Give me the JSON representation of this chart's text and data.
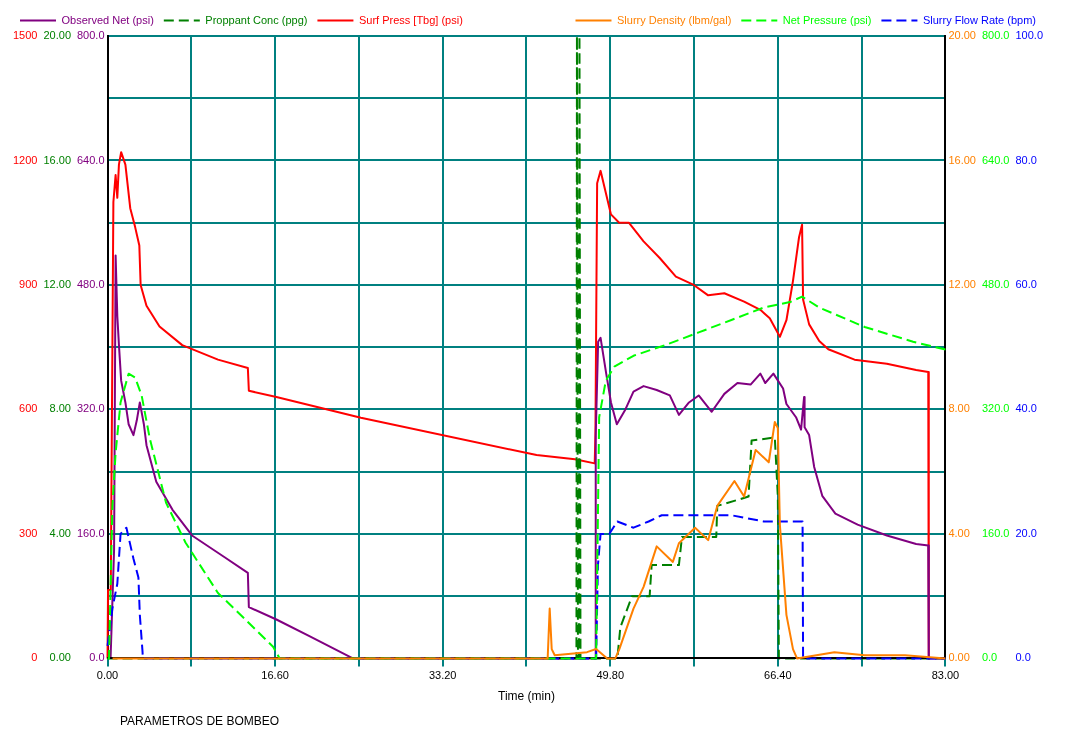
{
  "chart_data": [
    {
      "type": "line",
      "xlabel": "Time (min)",
      "annotations": [
        "PARAMETROS DE BOMBEO"
      ],
      "xlim": [
        0,
        83
      ],
      "xticks": [
        {
          "value": 0,
          "label": "0.00"
        },
        {
          "value": 8.3,
          "label": null
        },
        {
          "value": 16.6,
          "label": "16.60"
        },
        {
          "value": 24.9,
          "label": null
        },
        {
          "value": 33.2,
          "label": "33.20"
        },
        {
          "value": 41.5,
          "label": null
        },
        {
          "value": 49.8,
          "label": "49.80"
        },
        {
          "value": 58.1,
          "label": null
        },
        {
          "value": 66.4,
          "label": "66.40"
        },
        {
          "value": 74.7,
          "label": null
        },
        {
          "value": 83,
          "label": "83.00"
        }
      ],
      "ylim": [
        0,
        800
      ],
      "yticks": [
        {
          "value": 0,
          "label": "0.0"
        },
        {
          "value": 80,
          "label": null
        },
        {
          "value": 160,
          "label": "160.0"
        },
        {
          "value": 240,
          "label": null
        },
        {
          "value": 320,
          "label": "320.0"
        },
        {
          "value": 400,
          "label": null
        },
        {
          "value": 480,
          "label": "480.0"
        },
        {
          "value": 560,
          "label": null
        },
        {
          "value": 640,
          "label": "640.0"
        },
        {
          "value": 720,
          "label": null
        },
        {
          "value": 800,
          "label": "800.0"
        }
      ],
      "y2lim": [
        0,
        20
      ],
      "y2ticks": [
        {
          "value": 0,
          "label": "0.00"
        },
        {
          "value": 4,
          "label": "4.00"
        },
        {
          "value": 8,
          "label": "8.00"
        },
        {
          "value": 12,
          "label": "12.00"
        },
        {
          "value": 16,
          "label": "16.00"
        },
        {
          "value": 20,
          "label": "20.00"
        }
      ],
      "y3lim": [
        0,
        1500
      ],
      "y3ticks": [
        0,
        300,
        600,
        900,
        1200,
        1500
      ],
      "grid": true,
      "legend": "top left",
      "marker": "none",
      "series": [
        {
          "name": "Observed Net (psi)",
          "color": "#800080",
          "line_style": "solid",
          "x": [
            0.3,
            0.65,
            0.8,
            0.97,
            1.13,
            1.35,
            1.77,
            2.09,
            2.57,
            2.9,
            3.2,
            3.6,
            3.86,
            4.83,
            6.44,
            8.37,
            11.6,
            13.9,
            14.0,
            16.73,
            19.95,
            24.3,
            48.3,
            48.36,
            48.6,
            48.84,
            49.4,
            49.87,
            50.45,
            51.3,
            52.1,
            53.1,
            54.4,
            55.7,
            56.6,
            57.6,
            58.56,
            59.85,
            61.1,
            62.4,
            63.7,
            64.67,
            65.15,
            65.96,
            66.92,
            67.25,
            68.2,
            68.7,
            69.0,
            69.05,
            69.5,
            70.0,
            70.8,
            72.1,
            74.3,
            77.2,
            80.1,
            81.3,
            81.35,
            83
          ],
          "values": [
            0,
            140,
            518,
            440,
            403,
            357,
            329,
            301,
            287,
            306,
            329,
            301,
            274,
            227,
            191,
            158,
            130,
            110,
            66,
            50,
            29,
            0,
            0,
            287,
            407,
            412,
            366,
            329,
            301,
            320,
            343,
            350,
            345,
            338,
            313,
            329,
            338,
            317,
            340,
            354,
            352,
            366,
            354,
            366,
            347,
            327,
            310,
            294,
            336,
            297,
            287,
            246,
            209,
            186,
            172,
            158,
            147,
            145,
            0,
            0
          ]
        },
        {
          "name": "Proppant Conc (ppg)",
          "color": "#008000",
          "axis": "y2",
          "line_style": "dashed",
          "x": [
            0,
            46.45,
            46.5,
            46.6,
            46.7,
            46.75,
            46.85,
            50.5,
            50.8,
            51.96,
            53.7,
            53.9,
            56.6,
            56.9,
            60.3,
            60.4,
            63.5,
            63.8,
            66.1,
            66.4,
            66.5,
            83
          ],
          "values": [
            0,
            0,
            20,
            0,
            0,
            20,
            0,
            0,
            1,
            2,
            2,
            3,
            3,
            3.9,
            3.9,
            4.9,
            5.2,
            7,
            7.1,
            5.2,
            0,
            0
          ]
        },
        {
          "name": "Surf Press [Tbg] (psi)",
          "color": "#ff0000",
          "axis": "y3",
          "line_style": "solid",
          "x": [
            0,
            0.05,
            0.32,
            0.58,
            0.8,
            0.97,
            1.13,
            1.35,
            1.77,
            2.25,
            2.73,
            3.15,
            3.28,
            3.86,
            5.15,
            7.4,
            10.94,
            13.9,
            14.0,
            16.73,
            25.1,
            42.5,
            46.3,
            48.26,
            48.33,
            48.5,
            48.84,
            49.87,
            50.68,
            51.64,
            53.1,
            54.7,
            56.3,
            58.07,
            59.5,
            61.1,
            63.06,
            64.67,
            65.6,
            66.6,
            67.25,
            67.9,
            68.5,
            68.8,
            68.9,
            69.5,
            70.5,
            71.4,
            74.0,
            77.2,
            80.1,
            81.3,
            81.35
          ],
          "values": [
            0,
            165,
            165,
            1100,
            1165,
            1110,
            1190,
            1220,
            1190,
            1085,
            1040,
            995,
            900,
            850,
            800,
            755,
            720,
            700,
            645,
            630,
            580,
            490,
            480,
            470,
            540,
            1145,
            1175,
            1070,
            1050,
            1050,
            1005,
            965,
            920,
            900,
            875,
            880,
            860,
            840,
            820,
            775,
            815,
            910,
            1015,
            1045,
            865,
            805,
            765,
            745,
            720,
            710,
            695,
            690,
            0
          ]
        }
      ]
    },
    {
      "type": "line",
      "xlim": [
        0,
        83
      ],
      "ylim": [
        0,
        20
      ],
      "yticks": [
        {
          "value": 0,
          "label": "0.00"
        },
        {
          "value": 4,
          "label": "4.00"
        },
        {
          "value": 8,
          "label": "8.00"
        },
        {
          "value": 12,
          "label": "12.00"
        },
        {
          "value": 16,
          "label": "16.00"
        },
        {
          "value": 20,
          "label": "20.00"
        }
      ],
      "y2lim": [
        0,
        800
      ],
      "y2ticks": [
        {
          "value": 0,
          "label": "0.0"
        },
        {
          "value": 160,
          "label": "160.0"
        },
        {
          "value": 320,
          "label": "320.0"
        },
        {
          "value": 480,
          "label": "480.0"
        },
        {
          "value": 640,
          "label": "640.0"
        },
        {
          "value": 800,
          "label": "800.0"
        }
      ],
      "y3lim": [
        0,
        100
      ],
      "y3ticks": [
        {
          "value": 0,
          "label": "0.0"
        },
        {
          "value": 20,
          "label": "20.0"
        },
        {
          "value": 40,
          "label": "40.0"
        },
        {
          "value": 60,
          "label": "60.0"
        },
        {
          "value": 80,
          "label": "80.0"
        },
        {
          "value": 100,
          "label": "100.0"
        }
      ],
      "tick_labels": "y",
      "legend": "top right",
      "marker": "none",
      "series": [
        {
          "name": "Slurry Density (lbm/gal)",
          "color": "#ff8000",
          "line_style": "solid",
          "x": [
            0.5,
            43.6,
            43.8,
            44.0,
            44.3,
            47.5,
            48.4,
            49.5,
            50.3,
            50.7,
            52.1,
            53.1,
            54.4,
            56.0,
            56.6,
            58.2,
            59.5,
            60.4,
            62.1,
            63.06,
            64.2,
            65.5,
            66.1,
            66.4,
            66.6,
            67.25,
            67.9,
            68.3,
            72,
            75,
            79,
            83
          ],
          "values": [
            0,
            0,
            1.6,
            0.3,
            0.1,
            0.2,
            0.3,
            0,
            0,
            0.3,
            1.6,
            2.3,
            3.6,
            3.1,
            3.7,
            4.2,
            3.8,
            4.9,
            5.7,
            5.2,
            6.7,
            6.3,
            7.6,
            7.4,
            4.3,
            1.4,
            0.3,
            0,
            0.2,
            0.1,
            0.1,
            0
          ]
        },
        {
          "name": "Net Pressure (psi)",
          "color": "#00ff00",
          "axis": "y2",
          "line_style": "dashed",
          "x": [
            0,
            0.15,
            0.48,
            0.8,
            1.29,
            2.09,
            2.73,
            3.38,
            4.18,
            5.8,
            7.72,
            10.94,
            13.5,
            16.4,
            17.05,
            48.4,
            48.7,
            49.36,
            50.2,
            52.1,
            55.3,
            58.56,
            61.8,
            65.0,
            67.6,
            68.8,
            70.5,
            75.0,
            79.8,
            83
          ],
          "values": [
            0,
            0,
            195,
            264,
            329,
            366,
            361,
            338,
            283,
            200,
            149,
            84,
            52,
            15,
            0,
            0,
            310,
            357,
            375,
            389,
            403,
            419,
            435,
            451,
            458,
            465,
            451,
            426,
            407,
            397
          ]
        },
        {
          "name": "Slurry Flow Rate (bpm)",
          "color": "#0000ff",
          "axis": "y3",
          "line_style": "dashed",
          "x": [
            0,
            0.48,
            0.97,
            1.29,
            1.87,
            2.57,
            3.06,
            3.2,
            3.47,
            3.5,
            48.4,
            48.58,
            48.84,
            49.7,
            50.5,
            52.1,
            53.6,
            54.9,
            56.9,
            59.2,
            61.8,
            65.0,
            66.9,
            68.85,
            68.9,
            83
          ],
          "values": [
            2,
            8,
            12,
            20,
            21,
            16,
            13,
            7,
            1,
            0,
            0,
            15,
            20,
            20,
            22,
            21,
            22,
            23,
            23,
            23,
            23,
            22,
            22,
            22,
            0,
            0
          ]
        }
      ]
    }
  ]
}
